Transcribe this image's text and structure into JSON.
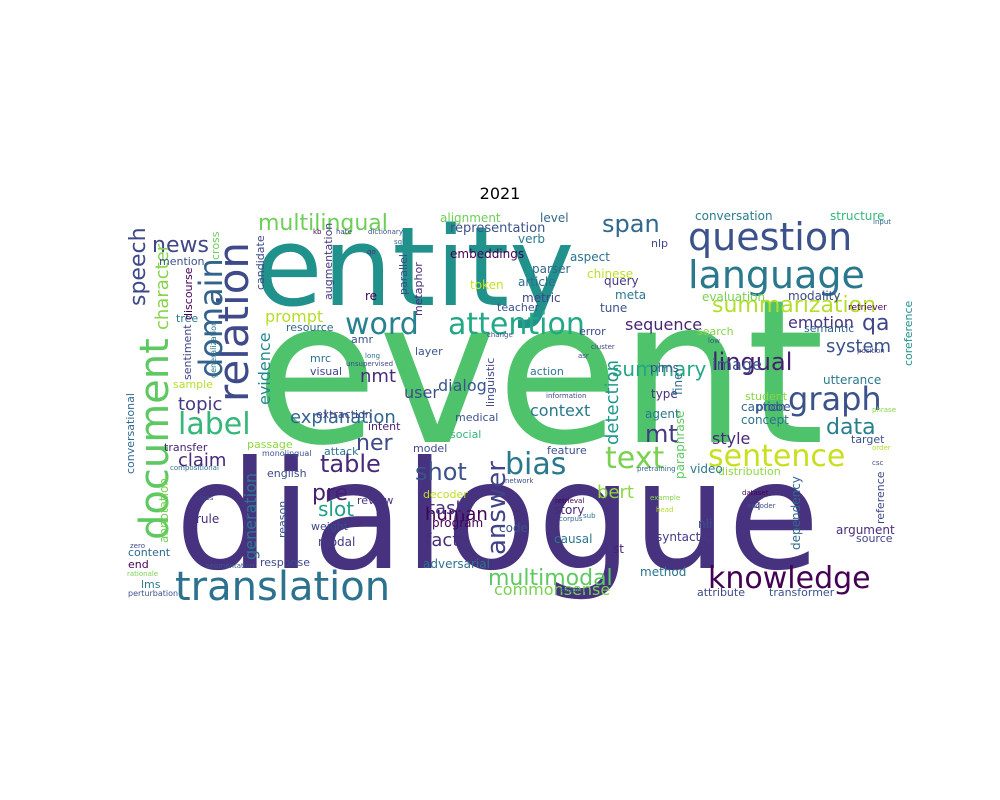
{
  "title": "2021",
  "words": [
    {
      "text": "event",
      "color": "#4ec36b"
    },
    {
      "text": "dialogue",
      "color": "#46327e"
    },
    {
      "text": "entity",
      "color": "#21918c"
    },
    {
      "text": "question",
      "color": "#3b528b"
    },
    {
      "text": "language",
      "color": "#2a788e"
    },
    {
      "text": "translation",
      "color": "#2c728e"
    },
    {
      "text": "knowledge",
      "color": "#440154"
    },
    {
      "text": "document",
      "color": "#5ec962"
    },
    {
      "text": "relation",
      "color": "#3e4a89"
    },
    {
      "text": "domain",
      "color": "#33638d"
    },
    {
      "text": "word",
      "color": "#26828e"
    },
    {
      "text": "attention",
      "color": "#22a884"
    },
    {
      "text": "graph",
      "color": "#3b528b"
    },
    {
      "text": "sentence",
      "color": "#c8e020"
    },
    {
      "text": "text",
      "color": "#7ad151"
    },
    {
      "text": "label",
      "color": "#35b779"
    },
    {
      "text": "bias",
      "color": "#2a788e"
    },
    {
      "text": "answer",
      "color": "#414487"
    },
    {
      "text": "summarization",
      "color": "#b5de2b"
    },
    {
      "text": "multilingual",
      "color": "#6ece58"
    },
    {
      "text": "speech",
      "color": "#3e4989"
    },
    {
      "text": "news",
      "color": "#404688"
    },
    {
      "text": "span",
      "color": "#31688e"
    },
    {
      "text": "lingual",
      "color": "#481f70"
    },
    {
      "text": "table",
      "color": "#482878"
    },
    {
      "text": "shot",
      "color": "#3b528b"
    },
    {
      "text": "multimodal",
      "color": "#5ec962"
    },
    {
      "text": "summary",
      "color": "#22a884"
    },
    {
      "text": "mt",
      "color": "#443983"
    },
    {
      "text": "data",
      "color": "#277f8e"
    },
    {
      "text": "ner",
      "color": "#3e4989"
    },
    {
      "text": "character",
      "color": "#86d549"
    },
    {
      "text": "pre",
      "color": "#481f70"
    },
    {
      "text": "system",
      "color": "#3b528b"
    },
    {
      "text": "qa",
      "color": "#404688"
    },
    {
      "text": "emotion",
      "color": "#46327e"
    },
    {
      "text": "commonsense",
      "color": "#7ad151"
    },
    {
      "text": "explanation",
      "color": "#31688e"
    },
    {
      "text": "context",
      "color": "#2a788e"
    },
    {
      "text": "detection",
      "color": "#1f988b"
    },
    {
      "text": "human",
      "color": "#440154"
    },
    {
      "text": "sequence",
      "color": "#482475"
    },
    {
      "text": "fact",
      "color": "#472d7b"
    },
    {
      "text": "slot",
      "color": "#1fa187"
    },
    {
      "text": "task",
      "color": "#46327e"
    },
    {
      "text": "claim",
      "color": "#482878"
    },
    {
      "text": "topic",
      "color": "#443983"
    },
    {
      "text": "style",
      "color": "#482878"
    },
    {
      "text": "image",
      "color": "#39568c"
    },
    {
      "text": "nmt",
      "color": "#472c7a"
    },
    {
      "text": "prompt",
      "color": "#b5de2b"
    },
    {
      "text": "evidence",
      "color": "#23898e"
    },
    {
      "text": "generation",
      "color": "#2a788e"
    },
    {
      "text": "bert",
      "color": "#8fd744"
    },
    {
      "text": "dialog",
      "color": "#39568c"
    },
    {
      "text": "user",
      "color": "#3e4a89"
    },
    {
      "text": "representation",
      "color": "#3b528b"
    },
    {
      "text": "conversation",
      "color": "#287c8e"
    },
    {
      "text": "structure",
      "color": "#35b779"
    },
    {
      "text": "embeddings",
      "color": "#440154"
    },
    {
      "text": "alignment",
      "color": "#6ece58"
    },
    {
      "text": "parser",
      "color": "#31688e"
    },
    {
      "text": "verb",
      "color": "#2a788e"
    },
    {
      "text": "metric",
      "color": "#414487"
    },
    {
      "text": "article",
      "color": "#2e6f8e"
    },
    {
      "text": "query",
      "color": "#443983"
    },
    {
      "text": "chinese",
      "color": "#bddf26"
    },
    {
      "text": "meta",
      "color": "#2a788e"
    },
    {
      "text": "tune",
      "color": "#3b528b"
    },
    {
      "text": "evaluation",
      "color": "#7ad151"
    },
    {
      "text": "modality",
      "color": "#3e4a89"
    },
    {
      "text": "retriever",
      "color": "#440154"
    },
    {
      "text": "semantic",
      "color": "#33638d"
    },
    {
      "text": "coreference",
      "color": "#21918c"
    },
    {
      "text": "utterance",
      "color": "#2a788e"
    },
    {
      "text": "probe",
      "color": "#3e4a89"
    },
    {
      "text": "student",
      "color": "#86d549"
    },
    {
      "text": "caption",
      "color": "#31688e"
    },
    {
      "text": "concept",
      "color": "#2c728e"
    },
    {
      "text": "target",
      "color": "#3b528b"
    },
    {
      "text": "agent",
      "color": "#2a788e"
    },
    {
      "text": "type",
      "color": "#46327e"
    },
    {
      "text": "plms",
      "color": "#3b528b"
    },
    {
      "text": "fine",
      "color": "#2e6f8e"
    },
    {
      "text": "paraphrase",
      "color": "#5ec962"
    },
    {
      "text": "distribution",
      "color": "#8fd744"
    },
    {
      "text": "video",
      "color": "#2a788e"
    },
    {
      "text": "feature",
      "color": "#3b528b"
    },
    {
      "text": "source",
      "color": "#404688"
    },
    {
      "text": "argument",
      "color": "#472d7b"
    },
    {
      "text": "reference",
      "color": "#3e4989"
    },
    {
      "text": "dependency",
      "color": "#31688e"
    },
    {
      "text": "nli",
      "color": "#3b528b"
    },
    {
      "text": "seq",
      "color": "#46327e"
    },
    {
      "text": "syntactic",
      "color": "#443983"
    },
    {
      "text": "method",
      "color": "#2c728e"
    },
    {
      "text": "attribute",
      "color": "#3e4989"
    },
    {
      "text": "transformer",
      "color": "#3b528b"
    },
    {
      "text": "story",
      "color": "#482878"
    },
    {
      "text": "code",
      "color": "#3b528b"
    },
    {
      "text": "causal",
      "color": "#2a788e"
    },
    {
      "text": "st",
      "color": "#481f70"
    },
    {
      "text": "adversarial",
      "color": "#2c728e"
    },
    {
      "text": "program",
      "color": "#440154"
    },
    {
      "text": "decoder",
      "color": "#bddf26"
    },
    {
      "text": "model",
      "color": "#3e4a89"
    },
    {
      "text": "review",
      "color": "#46327e"
    },
    {
      "text": "reason",
      "color": "#3b528b"
    },
    {
      "text": "weight",
      "color": "#3e4989"
    },
    {
      "text": "modal",
      "color": "#443983"
    },
    {
      "text": "attack",
      "color": "#2c728e"
    },
    {
      "text": "english",
      "color": "#3e4a89"
    },
    {
      "text": "passage",
      "color": "#8fd744"
    },
    {
      "text": "transfer",
      "color": "#482475"
    },
    {
      "text": "monolingual",
      "color": "#3b528b"
    },
    {
      "text": "rule",
      "color": "#472d7b"
    },
    {
      "text": "annotation",
      "color": "#7ad151"
    },
    {
      "text": "content",
      "color": "#31688e"
    },
    {
      "text": "end",
      "color": "#440154"
    },
    {
      "text": "response",
      "color": "#3e4989"
    },
    {
      "text": "lms",
      "color": "#2a788e"
    },
    {
      "text": "perturbation",
      "color": "#3b528b"
    },
    {
      "text": "conversational",
      "color": "#31688e"
    },
    {
      "text": "sample",
      "color": "#b5de2b"
    },
    {
      "text": "sentiment",
      "color": "#404688"
    },
    {
      "text": "tree",
      "color": "#2a788e"
    },
    {
      "text": "mention",
      "color": "#3b528b"
    },
    {
      "text": "discourse",
      "color": "#440154"
    },
    {
      "text": "cross",
      "color": "#6ece58"
    },
    {
      "text": "candidate",
      "color": "#3e4989"
    },
    {
      "text": "resource",
      "color": "#31688e"
    },
    {
      "text": "layer",
      "color": "#3b528b"
    },
    {
      "text": "mrc",
      "color": "#2c728e"
    },
    {
      "text": "visual",
      "color": "#3e4989"
    },
    {
      "text": "amr",
      "color": "#3b528b"
    },
    {
      "text": "augmentation",
      "color": "#443983"
    },
    {
      "text": "re",
      "color": "#440154"
    },
    {
      "text": "parallel",
      "color": "#3e4a89"
    },
    {
      "text": "metaphor",
      "color": "#472d7b"
    },
    {
      "text": "token",
      "color": "#c8e020"
    },
    {
      "text": "teacher",
      "color": "#3b528b"
    },
    {
      "text": "error",
      "color": "#3e4989"
    },
    {
      "text": "search",
      "color": "#86d549"
    },
    {
      "text": "level",
      "color": "#31688e"
    },
    {
      "text": "aspect",
      "color": "#2c728e"
    },
    {
      "text": "extraction",
      "color": "#414487"
    },
    {
      "text": "intent",
      "color": "#481f70"
    },
    {
      "text": "medical",
      "color": "#3b528b"
    },
    {
      "text": "social",
      "color": "#35b779"
    },
    {
      "text": "linguistic",
      "color": "#3e4a89"
    },
    {
      "text": "action",
      "color": "#2a788e"
    },
    {
      "text": "nlp",
      "color": "#3e4989"
    },
    {
      "text": "generalization",
      "color": "#2c728e"
    },
    {
      "text": "kb",
      "color": "#440154"
    },
    {
      "text": "hate",
      "color": "#3e4989"
    },
    {
      "text": "dictionary",
      "color": "#3b528b"
    },
    {
      "text": "sql",
      "color": "#31688e"
    },
    {
      "text": "qo",
      "color": "#46327e"
    },
    {
      "text": "input",
      "color": "#31688e"
    },
    {
      "text": "unsupervised",
      "color": "#3e4989"
    },
    {
      "text": "long",
      "color": "#2c728e"
    },
    {
      "text": "change",
      "color": "#3b528b"
    },
    {
      "text": "information",
      "color": "#3e4989"
    },
    {
      "text": "adapter",
      "color": "#3b528b"
    },
    {
      "text": "retrieval",
      "color": "#440154"
    },
    {
      "text": "corpus",
      "color": "#31688e"
    },
    {
      "text": "zero",
      "color": "#3e4989"
    },
    {
      "text": "rationale",
      "color": "#7ad151"
    },
    {
      "text": "segmentation",
      "color": "#3b528b"
    },
    {
      "text": "compositional",
      "color": "#2c728e"
    },
    {
      "text": "class",
      "color": "#3e4989"
    },
    {
      "text": "network",
      "color": "#3b528b"
    },
    {
      "text": "dataset",
      "color": "#440154"
    },
    {
      "text": "encoder",
      "color": "#3b528b"
    },
    {
      "text": "pretraining",
      "color": "#31688e"
    },
    {
      "text": "phrase",
      "color": "#86d549"
    },
    {
      "text": "position",
      "color": "#3e4989"
    },
    {
      "text": "order",
      "color": "#b5de2b"
    },
    {
      "text": "csc",
      "color": "#3b528b"
    },
    {
      "text": "cluster",
      "color": "#3e4989"
    },
    {
      "text": "example",
      "color": "#86d549"
    },
    {
      "text": "head",
      "color": "#b5de2b"
    },
    {
      "text": "low",
      "color": "#3b528b"
    },
    {
      "text": "sub",
      "color": "#2c728e"
    },
    {
      "text": "asr",
      "color": "#3e4989"
    }
  ]
}
